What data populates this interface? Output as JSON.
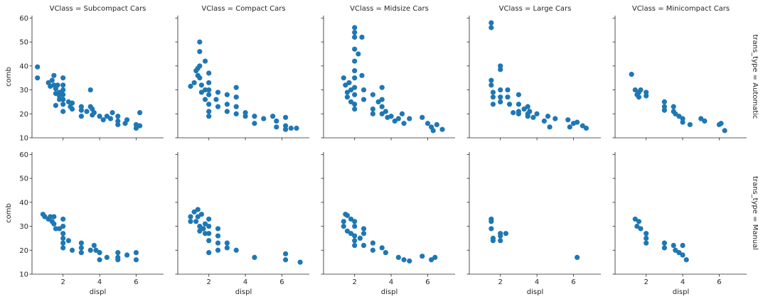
{
  "chart_data": {
    "type": "scatter",
    "facet_layout": "grid",
    "x_var": "displ",
    "y_var": "comb",
    "col_var": "VClass",
    "row_var": "trans_type",
    "columns": [
      "Subcompact Cars",
      "Compact Cars",
      "Midsize Cars",
      "Large Cars",
      "Minicompact Cars"
    ],
    "rows": [
      "Automatic",
      "Manual"
    ],
    "xlabel": "displ",
    "ylabel": "comb",
    "xlim": [
      0.3,
      7.5
    ],
    "ylim": [
      10,
      61
    ],
    "xticks": [
      2,
      4,
      6
    ],
    "yticks": [
      10,
      20,
      30,
      40,
      50,
      60
    ],
    "grid": false,
    "marker_color": "#1f77b4",
    "col_titles": [
      "VClass = Subcompact Cars",
      "VClass = Compact Cars",
      "VClass = Midsize Cars",
      "VClass = Large Cars",
      "VClass = Minicompact Cars"
    ],
    "row_titles": [
      "trans_type = Automatic",
      "trans_type = Manual"
    ],
    "panels": [
      {
        "row": "Automatic",
        "col": "Subcompact Cars",
        "points": [
          [
            0.6,
            39.6
          ],
          [
            0.6,
            35
          ],
          [
            1.2,
            33
          ],
          [
            1.3,
            31.5
          ],
          [
            1.4,
            34
          ],
          [
            1.5,
            36
          ],
          [
            1.5,
            32
          ],
          [
            1.6,
            30.5
          ],
          [
            1.6,
            28.5
          ],
          [
            1.6,
            23.5
          ],
          [
            1.7,
            32
          ],
          [
            1.8,
            29
          ],
          [
            1.8,
            27.5
          ],
          [
            1.8,
            26
          ],
          [
            2.0,
            35
          ],
          [
            2.0,
            32
          ],
          [
            2.0,
            30
          ],
          [
            2.0,
            28
          ],
          [
            2.0,
            26
          ],
          [
            2.0,
            24
          ],
          [
            2.0,
            21
          ],
          [
            2.3,
            25
          ],
          [
            2.4,
            23
          ],
          [
            2.5,
            24.5
          ],
          [
            2.5,
            22
          ],
          [
            3.0,
            23
          ],
          [
            3.0,
            21.5
          ],
          [
            3.0,
            19
          ],
          [
            3.3,
            21
          ],
          [
            3.5,
            30
          ],
          [
            3.5,
            23
          ],
          [
            3.6,
            22
          ],
          [
            3.6,
            19.5
          ],
          [
            3.7,
            20.5
          ],
          [
            4.0,
            19
          ],
          [
            4.2,
            17.5
          ],
          [
            4.4,
            19
          ],
          [
            4.6,
            18
          ],
          [
            4.7,
            20.5
          ],
          [
            5.0,
            19
          ],
          [
            5.0,
            17
          ],
          [
            5.0,
            15.5
          ],
          [
            5.4,
            16
          ],
          [
            5.5,
            17.5
          ],
          [
            6.0,
            15.5
          ],
          [
            6.0,
            14
          ],
          [
            6.2,
            20.5
          ],
          [
            6.2,
            15
          ]
        ]
      },
      {
        "row": "Automatic",
        "col": "Compact Cars",
        "points": [
          [
            1.0,
            31.5
          ],
          [
            1.2,
            33
          ],
          [
            1.3,
            38
          ],
          [
            1.4,
            39
          ],
          [
            1.4,
            36
          ],
          [
            1.5,
            46
          ],
          [
            1.5,
            50
          ],
          [
            1.5,
            40
          ],
          [
            1.5,
            35
          ],
          [
            1.6,
            32
          ],
          [
            1.6,
            29
          ],
          [
            1.8,
            30
          ],
          [
            1.8,
            26
          ],
          [
            1.8,
            42
          ],
          [
            2.0,
            37
          ],
          [
            2.0,
            33
          ],
          [
            2.0,
            30
          ],
          [
            2.0,
            28
          ],
          [
            2.0,
            24
          ],
          [
            2.0,
            21
          ],
          [
            2.0,
            19
          ],
          [
            2.4,
            26
          ],
          [
            2.5,
            29
          ],
          [
            2.5,
            23
          ],
          [
            3.0,
            28
          ],
          [
            3.0,
            24
          ],
          [
            3.0,
            21
          ],
          [
            3.5,
            31
          ],
          [
            3.5,
            27
          ],
          [
            3.5,
            23
          ],
          [
            3.5,
            20
          ],
          [
            4.0,
            20.5
          ],
          [
            4.0,
            19
          ],
          [
            4.5,
            19
          ],
          [
            4.5,
            16
          ],
          [
            5.0,
            18
          ],
          [
            5.5,
            19
          ],
          [
            5.7,
            17
          ],
          [
            5.7,
            14.5
          ],
          [
            6.2,
            18.5
          ],
          [
            6.2,
            15
          ],
          [
            6.2,
            13.5
          ],
          [
            6.5,
            14
          ],
          [
            6.8,
            14
          ]
        ]
      },
      {
        "row": "Automatic",
        "col": "Midsize Cars",
        "points": [
          [
            1.4,
            35
          ],
          [
            1.5,
            32
          ],
          [
            1.6,
            29
          ],
          [
            1.6,
            27
          ],
          [
            1.7,
            33
          ],
          [
            1.8,
            30
          ],
          [
            1.8,
            25
          ],
          [
            2.0,
            56
          ],
          [
            2.0,
            54
          ],
          [
            2.0,
            52
          ],
          [
            2.0,
            47
          ],
          [
            2.0,
            42
          ],
          [
            2.0,
            38
          ],
          [
            2.0,
            35
          ],
          [
            2.0,
            31
          ],
          [
            2.0,
            28
          ],
          [
            2.0,
            24
          ],
          [
            2.0,
            22
          ],
          [
            2.2,
            45
          ],
          [
            2.4,
            52
          ],
          [
            2.4,
            36
          ],
          [
            2.5,
            30
          ],
          [
            2.5,
            26
          ],
          [
            3.0,
            28
          ],
          [
            3.0,
            22
          ],
          [
            3.0,
            20
          ],
          [
            3.3,
            25
          ],
          [
            3.5,
            31
          ],
          [
            3.5,
            26
          ],
          [
            3.5,
            23
          ],
          [
            3.5,
            20
          ],
          [
            3.7,
            21
          ],
          [
            3.8,
            18.5
          ],
          [
            4.0,
            19
          ],
          [
            4.2,
            17
          ],
          [
            4.4,
            18
          ],
          [
            4.6,
            20
          ],
          [
            4.7,
            16
          ],
          [
            5.0,
            18
          ],
          [
            5.7,
            18.5
          ],
          [
            6.0,
            16
          ],
          [
            6.2,
            14.5
          ],
          [
            6.3,
            13
          ],
          [
            6.5,
            15.5
          ],
          [
            6.8,
            13.5
          ]
        ]
      },
      {
        "row": "Automatic",
        "col": "Large Cars",
        "points": [
          [
            1.5,
            58
          ],
          [
            1.5,
            56
          ],
          [
            1.5,
            34
          ],
          [
            1.5,
            32
          ],
          [
            1.6,
            29
          ],
          [
            1.6,
            27
          ],
          [
            1.6,
            24
          ],
          [
            2.0,
            40
          ],
          [
            2.0,
            38.5
          ],
          [
            2.0,
            30
          ],
          [
            2.0,
            27
          ],
          [
            2.0,
            25
          ],
          [
            2.4,
            30
          ],
          [
            2.4,
            27
          ],
          [
            2.5,
            24
          ],
          [
            2.7,
            20.5
          ],
          [
            3.0,
            28
          ],
          [
            3.0,
            24
          ],
          [
            3.0,
            21
          ],
          [
            3.0,
            20
          ],
          [
            3.3,
            22
          ],
          [
            3.5,
            23
          ],
          [
            3.5,
            20
          ],
          [
            3.5,
            19
          ],
          [
            3.6,
            21
          ],
          [
            3.8,
            18.5
          ],
          [
            4.0,
            20
          ],
          [
            4.4,
            17
          ],
          [
            4.6,
            19
          ],
          [
            4.7,
            14.5
          ],
          [
            5.0,
            18
          ],
          [
            5.7,
            17.5
          ],
          [
            5.8,
            14.5
          ],
          [
            6.0,
            16
          ],
          [
            6.2,
            16.5
          ],
          [
            6.5,
            15
          ],
          [
            6.7,
            14
          ]
        ]
      },
      {
        "row": "Automatic",
        "col": "Minicompact Cars",
        "points": [
          [
            1.2,
            36.5
          ],
          [
            1.4,
            30
          ],
          [
            1.5,
            28
          ],
          [
            1.6,
            29
          ],
          [
            1.6,
            27
          ],
          [
            1.7,
            30
          ],
          [
            2.0,
            29
          ],
          [
            2.0,
            27.5
          ],
          [
            3.0,
            25
          ],
          [
            3.0,
            23
          ],
          [
            3.0,
            21.5
          ],
          [
            3.5,
            23
          ],
          [
            3.5,
            21
          ],
          [
            3.6,
            20
          ],
          [
            3.8,
            19
          ],
          [
            4.0,
            18
          ],
          [
            4.0,
            16.5
          ],
          [
            4.4,
            15.5
          ],
          [
            5.0,
            18
          ],
          [
            5.2,
            17
          ],
          [
            6.0,
            15.5
          ],
          [
            6.1,
            16
          ],
          [
            6.3,
            13
          ]
        ]
      },
      {
        "row": "Manual",
        "col": "Subcompact Cars",
        "points": [
          [
            0.9,
            35
          ],
          [
            1.0,
            34
          ],
          [
            1.2,
            33
          ],
          [
            1.3,
            34
          ],
          [
            1.4,
            32
          ],
          [
            1.5,
            34
          ],
          [
            1.5,
            31
          ],
          [
            1.6,
            29
          ],
          [
            1.8,
            29
          ],
          [
            2.0,
            33
          ],
          [
            2.0,
            30
          ],
          [
            2.0,
            27
          ],
          [
            2.0,
            25
          ],
          [
            2.0,
            23
          ],
          [
            2.0,
            21
          ],
          [
            2.3,
            24
          ],
          [
            2.5,
            20
          ],
          [
            3.0,
            23
          ],
          [
            3.0,
            21
          ],
          [
            3.0,
            19
          ],
          [
            3.5,
            20
          ],
          [
            3.7,
            22
          ],
          [
            3.8,
            20
          ],
          [
            4.0,
            19
          ],
          [
            4.0,
            16
          ],
          [
            4.4,
            17
          ],
          [
            5.0,
            19
          ],
          [
            5.0,
            17
          ],
          [
            5.0,
            16
          ],
          [
            5.5,
            18
          ],
          [
            6.0,
            19
          ],
          [
            6.0,
            16
          ]
        ]
      },
      {
        "row": "Manual",
        "col": "Compact Cars",
        "points": [
          [
            1.0,
            34
          ],
          [
            1.0,
            32
          ],
          [
            1.2,
            36
          ],
          [
            1.3,
            32
          ],
          [
            1.4,
            37
          ],
          [
            1.4,
            34
          ],
          [
            1.5,
            30
          ],
          [
            1.5,
            28
          ],
          [
            1.6,
            35
          ],
          [
            1.7,
            29
          ],
          [
            1.8,
            31
          ],
          [
            1.8,
            27
          ],
          [
            2.0,
            33
          ],
          [
            2.0,
            30
          ],
          [
            2.0,
            27
          ],
          [
            2.0,
            24
          ],
          [
            2.0,
            19
          ],
          [
            2.5,
            29
          ],
          [
            2.5,
            26
          ],
          [
            2.5,
            23
          ],
          [
            2.5,
            20
          ],
          [
            3.0,
            23
          ],
          [
            3.0,
            21
          ],
          [
            3.5,
            20
          ],
          [
            4.5,
            17
          ],
          [
            6.2,
            18.5
          ],
          [
            6.2,
            16
          ],
          [
            7.0,
            15
          ]
        ]
      },
      {
        "row": "Manual",
        "col": "Midsize Cars",
        "points": [
          [
            1.4,
            32
          ],
          [
            1.4,
            30
          ],
          [
            1.5,
            35
          ],
          [
            1.6,
            34.5
          ],
          [
            1.6,
            28
          ],
          [
            1.8,
            33
          ],
          [
            1.8,
            27
          ],
          [
            2.0,
            32
          ],
          [
            2.0,
            30
          ],
          [
            2.0,
            26
          ],
          [
            2.0,
            24
          ],
          [
            2.0,
            22
          ],
          [
            2.3,
            25
          ],
          [
            2.5,
            29
          ],
          [
            2.5,
            27
          ],
          [
            2.5,
            22
          ],
          [
            3.0,
            23
          ],
          [
            3.0,
            20
          ],
          [
            3.5,
            21
          ],
          [
            3.7,
            19
          ],
          [
            4.4,
            17
          ],
          [
            4.7,
            16
          ],
          [
            5.0,
            15.5
          ],
          [
            5.7,
            17.5
          ],
          [
            6.2,
            16
          ],
          [
            6.4,
            17
          ]
        ]
      },
      {
        "row": "Manual",
        "col": "Large Cars",
        "points": [
          [
            1.5,
            33
          ],
          [
            1.5,
            32
          ],
          [
            1.5,
            29
          ],
          [
            1.6,
            25
          ],
          [
            1.6,
            24
          ],
          [
            2.0,
            27
          ],
          [
            2.0,
            26
          ],
          [
            2.0,
            24
          ],
          [
            2.3,
            27
          ],
          [
            6.2,
            17
          ]
        ]
      },
      {
        "row": "Manual",
        "col": "Minicompact Cars",
        "points": [
          [
            1.4,
            33
          ],
          [
            1.5,
            30
          ],
          [
            1.6,
            32
          ],
          [
            1.7,
            29
          ],
          [
            2.0,
            27
          ],
          [
            2.0,
            25
          ],
          [
            2.0,
            23
          ],
          [
            3.0,
            23
          ],
          [
            3.0,
            21
          ],
          [
            3.5,
            22
          ],
          [
            3.6,
            20
          ],
          [
            3.8,
            19
          ],
          [
            4.0,
            22
          ],
          [
            4.0,
            18
          ],
          [
            4.2,
            16
          ]
        ]
      }
    ]
  }
}
